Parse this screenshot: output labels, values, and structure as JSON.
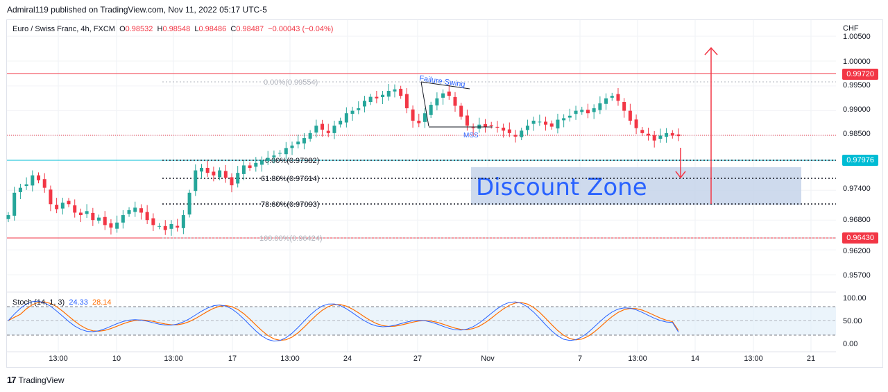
{
  "header": {
    "publisher_text": "Admiral119 published on TradingView.com, Nov 11, 2022 05:17 UTC-5"
  },
  "legend": {
    "symbol": "Euro / Swiss Franc, 4h, FXCM",
    "o_label": "O",
    "o_value": "0.98532",
    "h_label": "H",
    "h_value": "0.98548",
    "l_label": "L",
    "l_value": "0.98486",
    "c_label": "C",
    "c_value": "0.98487",
    "change": "−0.00043 (−0.04%)"
  },
  "price_axis": {
    "currency": "CHF",
    "ticks": [
      "1.00500",
      "1.00000",
      "0.99500",
      "0.99000",
      "0.98500",
      "0.97400",
      "0.96800",
      "0.96200",
      "0.95700"
    ],
    "tags": [
      {
        "label": "0.99720",
        "color": "#f23645"
      },
      {
        "label": "0.97976",
        "color": "#00bcd4"
      },
      {
        "label": "0.96430",
        "color": "#f23645"
      }
    ]
  },
  "fib_levels": [
    {
      "label": "0.00%(0.99554)"
    },
    {
      "label": "0.00%(0.97982)"
    },
    {
      "label": "61.80%(0.97614)"
    },
    {
      "label": "78.60%(0.97093)"
    },
    {
      "label": "100.00%(0.96424)"
    }
  ],
  "annotations": {
    "failure_swing": "Failure Swing",
    "mss": "MSS",
    "discount_zone": "Discount Zone"
  },
  "stoch": {
    "label": "Stoch (14, 1, 3)",
    "k_value": "24.33",
    "d_value": "28.14",
    "k_color": "#2962ff",
    "d_color": "#ff6d00",
    "ticks": [
      "100.00",
      "50.00",
      "0.00"
    ]
  },
  "time_axis": {
    "ticks": [
      "13:00",
      "10",
      "13:00",
      "17",
      "13:00",
      "24",
      "27",
      "Nov",
      "7",
      "13:00",
      "14",
      "13:00",
      "21"
    ]
  },
  "footer": {
    "brand": "TradingView",
    "logo_text": "17"
  },
  "colors": {
    "up": "#26a69a",
    "down": "#f23645",
    "accent_blue": "#2962ff",
    "zone": "#c6d4ea"
  },
  "chart_data": {
    "type": "candlestick",
    "instrument": "EUR/CHF",
    "timeframe": "4h",
    "ylim": [
      0.955,
      1.008
    ],
    "horizontal_lines": [
      0.9972,
      0.97976,
      0.9643
    ],
    "close_path": [
      0.969,
      0.9735,
      0.9745,
      0.9752,
      0.977,
      0.976,
      0.9745,
      0.9712,
      0.9702,
      0.9715,
      0.9712,
      0.9695,
      0.969,
      0.9698,
      0.968,
      0.9685,
      0.967,
      0.9665,
      0.9675,
      0.969,
      0.97,
      0.9705,
      0.9695,
      0.968,
      0.967,
      0.9668,
      0.966,
      0.9672,
      0.9665,
      0.969,
      0.9735,
      0.978,
      0.9785,
      0.9775,
      0.977,
      0.978,
      0.9765,
      0.975,
      0.9775,
      0.979,
      0.9785,
      0.9795,
      0.98,
      0.9805,
      0.981,
      0.9815,
      0.9825,
      0.983,
      0.9838,
      0.9845,
      0.9855,
      0.987,
      0.9862,
      0.9855,
      0.987,
      0.988,
      0.9895,
      0.99,
      0.9905,
      0.992,
      0.9928,
      0.9925,
      0.9932,
      0.994,
      0.9943,
      0.993,
      0.9905,
      0.988,
      0.9875,
      0.9895,
      0.9912,
      0.9925,
      0.9935,
      0.993,
      0.991,
      0.9888,
      0.987,
      0.9865,
      0.9872,
      0.9868,
      0.987,
      0.9866,
      0.986,
      0.9855,
      0.9848,
      0.986,
      0.987,
      0.988,
      0.9878,
      0.9872,
      0.9868,
      0.9882,
      0.9885,
      0.989,
      0.99,
      0.9902,
      0.9895,
      0.9905,
      0.9915,
      0.9925,
      0.993,
      0.992,
      0.99,
      0.988,
      0.9865,
      0.9855,
      0.985,
      0.984,
      0.985,
      0.9855,
      0.985,
      0.9849
    ],
    "fib_values": [
      0.99554,
      0.97982,
      0.97614,
      0.97093,
      0.96424
    ],
    "discount_zone": {
      "from": 0.97094,
      "to": 0.97976
    },
    "stoch_k_last": 24.33,
    "stoch_d_last": 28.14
  }
}
